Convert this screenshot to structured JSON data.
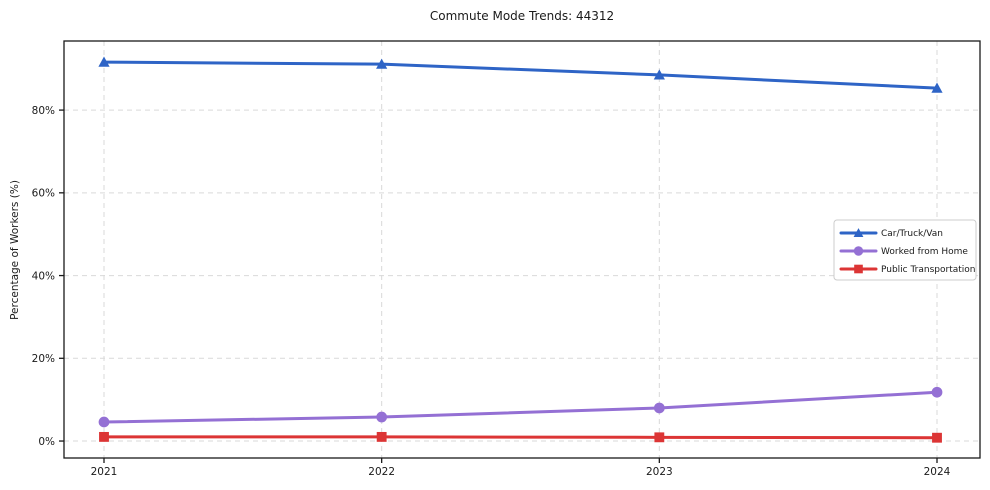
{
  "figure": {
    "background": "#ffffff",
    "axis_color": "#1a1a1a",
    "gridline_color": "#d9d9d9",
    "tick_label_color": "#1a1a1a"
  },
  "chart_data": {
    "type": "line",
    "title": "Commute Mode Trends: 44312",
    "xlabel": "",
    "ylabel": "Percentage of Workers (%)",
    "x": [
      "2021",
      "2022",
      "2023",
      "2024"
    ],
    "series": [
      {
        "name": "Car/Truck/Van",
        "color": "#2e64c6",
        "marker": "triangle-up",
        "values": [
          91.6,
          91.1,
          88.5,
          85.3
        ]
      },
      {
        "name": "Worked from Home",
        "color": "#9470d4",
        "marker": "circle",
        "values": [
          4.6,
          5.8,
          8.0,
          11.8
        ]
      },
      {
        "name": "Public Transportation",
        "color": "#dc3535",
        "marker": "square",
        "values": [
          1.0,
          1.0,
          0.9,
          0.8
        ]
      }
    ],
    "yticks": {
      "values": [
        0,
        20,
        40,
        60,
        80
      ],
      "labels": [
        "0%",
        "20%",
        "40%",
        "60%",
        "80%"
      ]
    },
    "ylim": [
      -4.1,
      96.7
    ],
    "grid": {
      "shown": true,
      "style": "dashed",
      "color": "#d9d9d9"
    },
    "legend": {
      "position": "center-right",
      "entries": [
        "Car/Truck/Van",
        "Worked from Home",
        "Public Transportation"
      ],
      "background": "#ffffff",
      "border_color": "#cccccc"
    }
  }
}
